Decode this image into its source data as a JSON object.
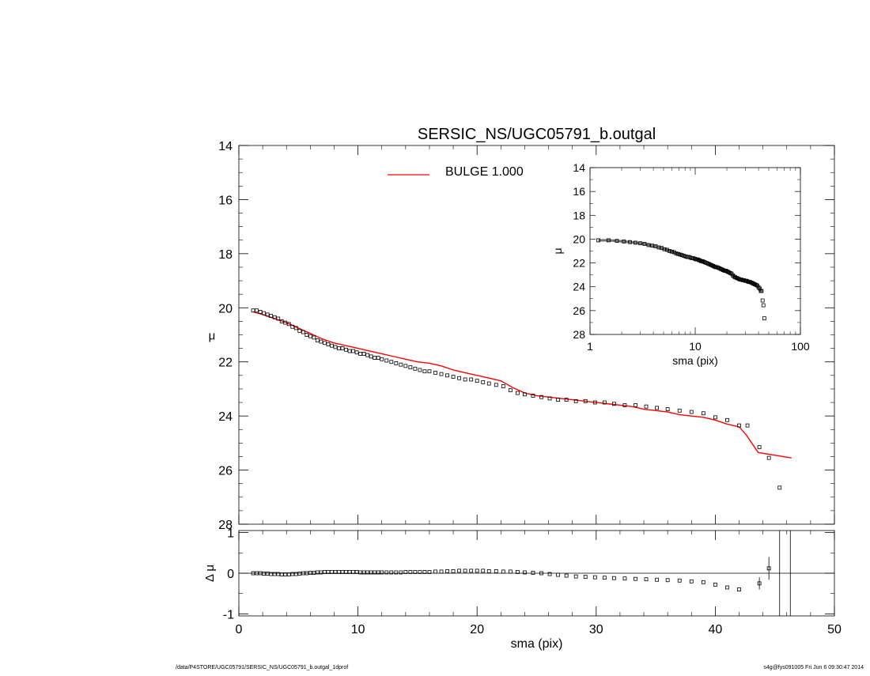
{
  "chart_data": [
    {
      "id": "main",
      "type": "scatter",
      "title": "SERSIC_NS/UGC05791_b.outgal",
      "xlabel": "",
      "ylabel": "μ",
      "xlim": [
        0,
        50
      ],
      "ylim": [
        28,
        14
      ],
      "y_inverted": true,
      "xticks": [
        0,
        10,
        20,
        30,
        40,
        50
      ],
      "yticks": [
        14,
        16,
        18,
        20,
        22,
        24,
        26,
        28
      ],
      "legend": {
        "placement": "top",
        "entries": [
          {
            "name": "BULGE  1.000",
            "color": "#ff0000"
          }
        ]
      },
      "series": [
        {
          "name": "data",
          "style": "squares",
          "color": "#000000",
          "x": [
            1.2,
            1.5,
            1.8,
            2.1,
            2.4,
            2.7,
            3.0,
            3.3,
            3.6,
            3.9,
            4.2,
            4.5,
            4.8,
            5.1,
            5.4,
            5.7,
            6.0,
            6.3,
            6.6,
            6.9,
            7.2,
            7.5,
            7.8,
            8.1,
            8.4,
            8.7,
            9.0,
            9.3,
            9.6,
            9.9,
            10.2,
            10.5,
            10.8,
            11.1,
            11.4,
            11.7,
            12.0,
            12.4,
            12.8,
            13.2,
            13.6,
            14.0,
            14.4,
            14.8,
            15.2,
            15.6,
            16.0,
            16.5,
            17.0,
            17.5,
            18.0,
            18.5,
            19.0,
            19.5,
            20.0,
            20.5,
            21.0,
            21.6,
            22.2,
            22.8,
            23.4,
            24.0,
            24.7,
            25.4,
            26.1,
            26.8,
            27.5,
            28.3,
            29.1,
            29.9,
            30.7,
            31.5,
            32.4,
            33.3,
            34.2,
            35.1,
            36.0,
            37.0,
            38.0,
            39.0,
            40.0,
            41.0,
            42.0,
            42.7,
            43.7,
            44.5,
            45.4
          ],
          "y": [
            20.1,
            20.1,
            20.15,
            20.2,
            20.25,
            20.3,
            20.35,
            20.4,
            20.5,
            20.55,
            20.6,
            20.7,
            20.75,
            20.85,
            20.9,
            21.0,
            21.05,
            21.1,
            21.2,
            21.25,
            21.3,
            21.35,
            21.4,
            21.45,
            21.5,
            21.5,
            21.55,
            21.6,
            21.6,
            21.65,
            21.7,
            21.7,
            21.75,
            21.8,
            21.85,
            21.85,
            21.9,
            21.95,
            22.0,
            22.05,
            22.1,
            22.15,
            22.2,
            22.25,
            22.3,
            22.35,
            22.35,
            22.4,
            22.45,
            22.5,
            22.55,
            22.6,
            22.65,
            22.65,
            22.7,
            22.75,
            22.8,
            22.85,
            22.9,
            23.05,
            23.15,
            23.2,
            23.25,
            23.3,
            23.35,
            23.4,
            23.4,
            23.45,
            23.45,
            23.5,
            23.5,
            23.55,
            23.6,
            23.6,
            23.65,
            23.7,
            23.75,
            23.8,
            23.85,
            23.9,
            24.05,
            24.15,
            24.35,
            24.35,
            25.15,
            25.55,
            26.65
          ]
        },
        {
          "name": "BULGE  1.000",
          "style": "line",
          "color": "#ff0000",
          "x": [
            1.2,
            2.0,
            3.0,
            4.0,
            5.0,
            6.0,
            7.0,
            8.0,
            9.0,
            10.0,
            11.0,
            12.0,
            13.0,
            14.0,
            15.0,
            16.0,
            17.0,
            18.0,
            19.0,
            20.0,
            21.0,
            22.0,
            23.0,
            24.0,
            25.0,
            26.0,
            27.0,
            28.0,
            29.0,
            30.0,
            31.0,
            32.0,
            33.0,
            34.0,
            35.0,
            36.0,
            37.0,
            38.0,
            39.0,
            40.0,
            41.0,
            42.0,
            42.6,
            43.6,
            46.4
          ],
          "y": [
            20.15,
            20.25,
            20.4,
            20.55,
            20.75,
            20.95,
            21.15,
            21.3,
            21.4,
            21.5,
            21.6,
            21.7,
            21.8,
            21.9,
            22.0,
            22.05,
            22.15,
            22.3,
            22.4,
            22.5,
            22.6,
            22.7,
            22.95,
            23.15,
            23.25,
            23.3,
            23.35,
            23.4,
            23.45,
            23.5,
            23.55,
            23.6,
            23.65,
            23.75,
            23.8,
            23.85,
            23.95,
            24.0,
            24.05,
            24.15,
            24.3,
            24.4,
            24.7,
            25.35,
            25.55
          ]
        }
      ]
    },
    {
      "id": "residual",
      "type": "scatter",
      "xlabel": "sma (pix)",
      "ylabel": "Δ μ",
      "xlim": [
        0,
        50
      ],
      "ylim": [
        -1.05,
        1.05
      ],
      "xticks": [
        0,
        10,
        20,
        30,
        40,
        50
      ],
      "yticks": [
        -1,
        0,
        1
      ],
      "zero_line": 0,
      "series": [
        {
          "name": "residual",
          "style": "squares",
          "color": "#000000",
          "x": [
            1.2,
            1.5,
            1.8,
            2.1,
            2.4,
            2.7,
            3.0,
            3.3,
            3.6,
            3.9,
            4.2,
            4.5,
            4.8,
            5.1,
            5.4,
            5.7,
            6.0,
            6.3,
            6.6,
            6.9,
            7.2,
            7.5,
            7.8,
            8.1,
            8.4,
            8.7,
            9.0,
            9.3,
            9.6,
            9.9,
            10.2,
            10.5,
            10.8,
            11.1,
            11.4,
            11.7,
            12.0,
            12.4,
            12.8,
            13.2,
            13.6,
            14.0,
            14.4,
            14.8,
            15.2,
            15.6,
            16.0,
            16.5,
            17.0,
            17.5,
            18.0,
            18.5,
            19.0,
            19.5,
            20.0,
            20.5,
            21.0,
            21.6,
            22.2,
            22.8,
            23.4,
            24.0,
            24.7,
            25.4,
            26.1,
            26.8,
            27.5,
            28.3,
            29.1,
            29.9,
            30.7,
            31.5,
            32.4,
            33.3,
            34.2,
            35.1,
            36.0,
            37.0,
            38.0,
            39.0,
            40.0,
            41.0,
            42.0,
            43.7,
            44.5
          ],
          "y": [
            0.0,
            0.0,
            0.0,
            -0.01,
            -0.01,
            -0.02,
            -0.02,
            -0.02,
            -0.03,
            -0.03,
            -0.03,
            -0.02,
            -0.02,
            -0.01,
            0.0,
            0.0,
            0.01,
            0.01,
            0.02,
            0.02,
            0.03,
            0.03,
            0.03,
            0.03,
            0.03,
            0.03,
            0.03,
            0.03,
            0.03,
            0.03,
            0.02,
            0.02,
            0.02,
            0.02,
            0.02,
            0.02,
            0.02,
            0.02,
            0.02,
            0.02,
            0.02,
            0.03,
            0.03,
            0.03,
            0.03,
            0.03,
            0.03,
            0.04,
            0.04,
            0.05,
            0.05,
            0.06,
            0.06,
            0.06,
            0.06,
            0.06,
            0.05,
            0.05,
            0.04,
            0.04,
            0.03,
            0.02,
            0.01,
            0.0,
            -0.02,
            -0.04,
            -0.06,
            -0.08,
            -0.09,
            -0.1,
            -0.11,
            -0.12,
            -0.13,
            -0.14,
            -0.15,
            -0.16,
            -0.17,
            -0.18,
            -0.2,
            -0.22,
            -0.28,
            -0.35,
            -0.4,
            -0.25,
            0.12
          ],
          "error_bars": [
            {
              "x": 43.7,
              "y": -0.25,
              "err": 0.15
            },
            {
              "x": 44.5,
              "y": 0.12,
              "err": 0.28
            },
            {
              "x": 45.4,
              "y": 0.0,
              "err": 1.2
            }
          ]
        }
      ],
      "vertical_line_x": 46.3
    },
    {
      "id": "inset",
      "type": "scatter",
      "xlabel": "sma (pix)",
      "ylabel": "μ",
      "xscale": "log",
      "xlim": [
        1,
        100
      ],
      "ylim": [
        28,
        14
      ],
      "y_inverted": true,
      "xticks": [
        1,
        10,
        100
      ],
      "yticks": [
        14,
        16,
        18,
        20,
        22,
        24,
        26,
        28
      ],
      "series": [
        {
          "name": "data-log",
          "style": "squares",
          "color": "#000000",
          "x": [
            1.2,
            1.5,
            1.8,
            2.1,
            2.4,
            2.7,
            3.0,
            3.3,
            3.6,
            3.9,
            4.2,
            4.5,
            4.8,
            5.1,
            5.4,
            5.7,
            6.0,
            6.3,
            6.6,
            6.9,
            7.2,
            7.5,
            7.8,
            8.1,
            8.4,
            8.7,
            9.0,
            9.3,
            9.6,
            9.9,
            10.2,
            10.5,
            10.8,
            11.1,
            11.4,
            11.7,
            12.0,
            12.4,
            12.8,
            13.2,
            13.6,
            14.0,
            14.4,
            14.8,
            15.2,
            15.6,
            16.0,
            16.5,
            17.0,
            17.5,
            18.0,
            18.5,
            19.0,
            19.5,
            20.0,
            20.5,
            21.0,
            21.6,
            22.2,
            22.8,
            23.4,
            24.0,
            24.7,
            25.4,
            26.1,
            26.8,
            27.5,
            28.3,
            29.1,
            29.9,
            30.7,
            31.5,
            32.4,
            33.3,
            34.2,
            35.1,
            36.0,
            37.0,
            38.0,
            39.0,
            40.0,
            41.0,
            42.0,
            42.7,
            43.7,
            44.5,
            45.4
          ],
          "y": [
            20.1,
            20.1,
            20.15,
            20.2,
            20.25,
            20.3,
            20.35,
            20.4,
            20.5,
            20.55,
            20.6,
            20.7,
            20.75,
            20.85,
            20.9,
            21.0,
            21.05,
            21.1,
            21.2,
            21.25,
            21.3,
            21.35,
            21.4,
            21.45,
            21.5,
            21.5,
            21.55,
            21.6,
            21.6,
            21.65,
            21.7,
            21.7,
            21.75,
            21.8,
            21.85,
            21.85,
            21.9,
            21.95,
            22.0,
            22.05,
            22.1,
            22.15,
            22.2,
            22.25,
            22.3,
            22.35,
            22.35,
            22.4,
            22.45,
            22.5,
            22.55,
            22.6,
            22.65,
            22.65,
            22.7,
            22.75,
            22.8,
            22.85,
            22.9,
            23.05,
            23.15,
            23.2,
            23.25,
            23.3,
            23.35,
            23.4,
            23.4,
            23.45,
            23.45,
            23.5,
            23.5,
            23.55,
            23.6,
            23.6,
            23.65,
            23.7,
            23.75,
            23.8,
            23.85,
            23.9,
            24.05,
            24.15,
            24.35,
            24.35,
            25.15,
            25.55,
            26.65
          ]
        }
      ]
    }
  ],
  "footer": {
    "left": "/data/P4STORE/UGC05791/SERSIC_NS/UGC05791_b.outgal_1dprof",
    "right": "s4g@fys091005  Fri Jun  6 09:30:47 2014"
  }
}
